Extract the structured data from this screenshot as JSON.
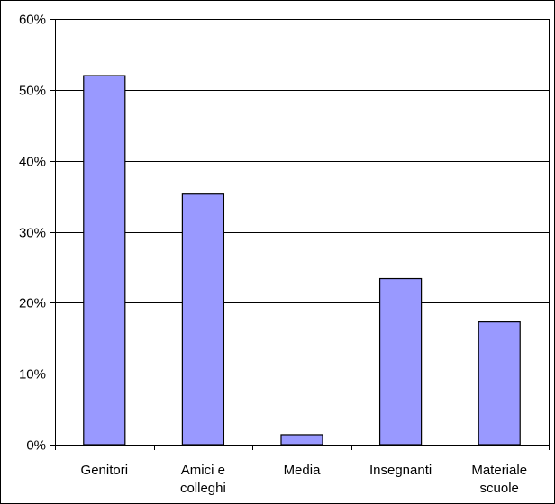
{
  "chart_data": {
    "type": "bar",
    "title": "",
    "xlabel": "",
    "ylabel": "",
    "categories": [
      [
        "Genitori"
      ],
      [
        "Amici e",
        "colleghi"
      ],
      [
        "Media"
      ],
      [
        "Insegnanti"
      ],
      [
        "Materiale",
        "scuole"
      ]
    ],
    "values": [
      52,
      35.3,
      1.4,
      23.4,
      17.3
    ],
    "ylim": [
      0,
      60
    ],
    "yticks": [
      0,
      10,
      20,
      30,
      40,
      50,
      60
    ],
    "ytick_labels": [
      "0%",
      "10%",
      "20%",
      "30%",
      "40%",
      "50%",
      "60%"
    ],
    "grid": "horizontal",
    "legend": "none",
    "colors": {
      "bar_fill": "#9999ff",
      "bar_stroke": "#000000",
      "gridline": "#000000",
      "background": "#ffffff",
      "border": "#000000"
    }
  }
}
